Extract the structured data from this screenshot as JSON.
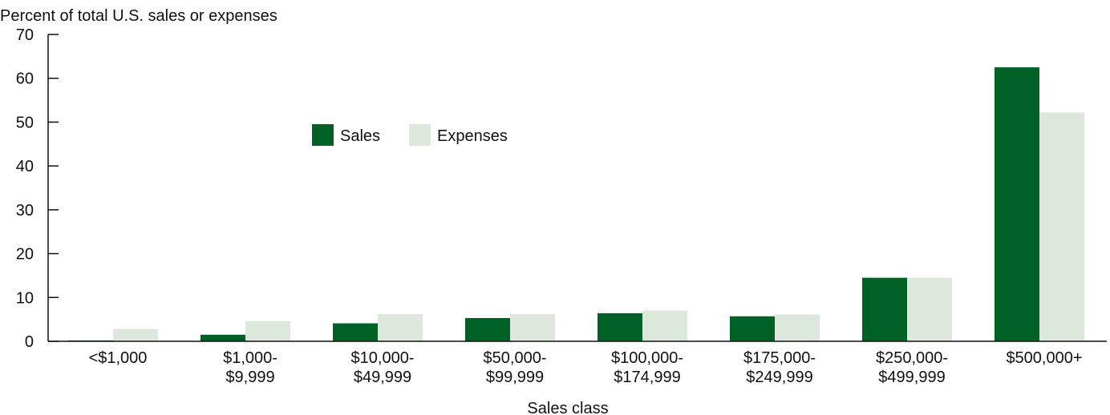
{
  "chart_data": {
    "type": "bar",
    "title": "Percent of total U.S. sales or expenses",
    "x_label": "Sales class",
    "categories": [
      "<$1,000",
      "$1,000-\n$9,999",
      "$10,000-\n$49,999",
      "$50,000-\n$99,999",
      "$100,000-\n$174,999",
      "$175,000-\n$249,999",
      "$250,000-\n$499,999",
      "$500,000+"
    ],
    "series": [
      {
        "name": "Sales",
        "color": "#006127",
        "values": [
          0.2,
          1.5,
          4.1,
          5.3,
          6.4,
          5.7,
          14.5,
          62.5
        ]
      },
      {
        "name": "Expenses",
        "color": "#dce8dc",
        "values": [
          2.8,
          4.6,
          6.2,
          6.2,
          7.0,
          6.1,
          14.5,
          52.2
        ]
      }
    ],
    "ylim": [
      0,
      70
    ],
    "yticks": [
      0,
      10,
      20,
      30,
      40,
      50,
      60,
      70
    ]
  }
}
